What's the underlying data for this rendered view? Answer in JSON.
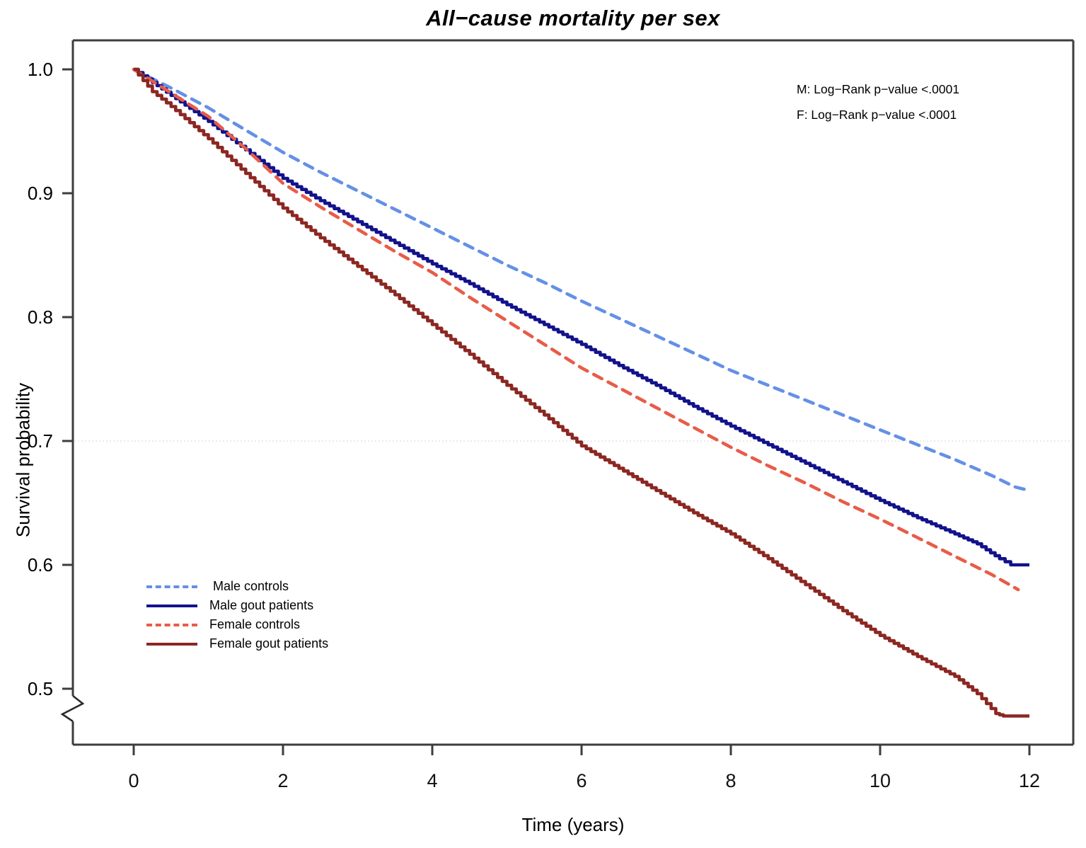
{
  "title": "All−cause mortality per sex",
  "annotations": {
    "male_pvalue": "M: Log−Rank p−value <.0001",
    "female_pvalue": "F: Log−Rank p−value <.0001"
  },
  "axes": {
    "x": {
      "label": "Time (years)",
      "ticks": [
        "0",
        "2",
        "4",
        "6",
        "8",
        "10",
        "12"
      ],
      "tick_values": [
        0,
        2,
        4,
        6,
        8,
        10,
        12
      ]
    },
    "y": {
      "label": "Survival probability",
      "ticks": [
        "1.0",
        "0.9",
        "0.8",
        "0.7",
        "0.6",
        "0.5"
      ],
      "tick_values": [
        1.0,
        0.9,
        0.8,
        0.7,
        0.6,
        0.5
      ],
      "axis_break": true
    }
  },
  "legend": {
    "items": [
      {
        "label": " Male controls",
        "color": "#6490e6",
        "dash": true
      },
      {
        "label": "Male gout patients",
        "color": "#12128c",
        "dash": false
      },
      {
        "label": "Female controls",
        "color": "#e85c48",
        "dash": true
      },
      {
        "label": "Female gout patients",
        "color": "#8c2722",
        "dash": false
      }
    ]
  },
  "chart_data": {
    "type": "line",
    "subtype": "kaplan-meier-survival",
    "title": "All−cause mortality per sex",
    "xlabel": "Time (years)",
    "ylabel": "Survival probability",
    "xlim": [
      0,
      12
    ],
    "ylim": [
      0.46,
      1.0
    ],
    "y_axis_break_below": 0.5,
    "reference_line_y": 0.7,
    "legend_position": "lower-left",
    "grid": false,
    "p_values": {
      "male": "<.0001",
      "female": "<.0001"
    },
    "series": [
      {
        "name": "Male controls",
        "color": "#6490e6",
        "style": "dashed",
        "points": [
          [
            0,
            1.0
          ],
          [
            0.5,
            0.985
          ],
          [
            1,
            0.969
          ],
          [
            1.5,
            0.951
          ],
          [
            2,
            0.933
          ],
          [
            2.5,
            0.917
          ],
          [
            3,
            0.902
          ],
          [
            3.5,
            0.887
          ],
          [
            4,
            0.872
          ],
          [
            4.5,
            0.857
          ],
          [
            5,
            0.842
          ],
          [
            5.5,
            0.828
          ],
          [
            6,
            0.813
          ],
          [
            6.5,
            0.799
          ],
          [
            7,
            0.785
          ],
          [
            7.5,
            0.771
          ],
          [
            8,
            0.757
          ],
          [
            8.5,
            0.745
          ],
          [
            9,
            0.733
          ],
          [
            9.5,
            0.721
          ],
          [
            10,
            0.709
          ],
          [
            10.5,
            0.697
          ],
          [
            11,
            0.685
          ],
          [
            11.5,
            0.672
          ],
          [
            11.8,
            0.663
          ],
          [
            12,
            0.66
          ]
        ]
      },
      {
        "name": "Male gout patients",
        "color": "#12128c",
        "style": "solid",
        "points": [
          [
            0,
            1.0
          ],
          [
            0.5,
            0.979
          ],
          [
            1,
            0.958
          ],
          [
            1.5,
            0.935
          ],
          [
            2,
            0.912
          ],
          [
            2.5,
            0.894
          ],
          [
            3,
            0.877
          ],
          [
            3.5,
            0.86
          ],
          [
            4,
            0.843
          ],
          [
            4.5,
            0.827
          ],
          [
            5,
            0.81
          ],
          [
            5.5,
            0.794
          ],
          [
            6,
            0.778
          ],
          [
            6.5,
            0.761
          ],
          [
            7,
            0.745
          ],
          [
            7.5,
            0.728
          ],
          [
            8,
            0.712
          ],
          [
            8.5,
            0.697
          ],
          [
            9,
            0.682
          ],
          [
            9.5,
            0.667
          ],
          [
            10,
            0.652
          ],
          [
            10.5,
            0.638
          ],
          [
            11,
            0.625
          ],
          [
            11.3,
            0.617
          ],
          [
            11.6,
            0.605
          ],
          [
            11.75,
            0.6
          ],
          [
            12,
            0.6
          ]
        ]
      },
      {
        "name": "Female controls",
        "color": "#e85c48",
        "style": "dashed",
        "points": [
          [
            0,
            1.0
          ],
          [
            0.5,
            0.981
          ],
          [
            1,
            0.962
          ],
          [
            1.5,
            0.936
          ],
          [
            2,
            0.908
          ],
          [
            2.5,
            0.889
          ],
          [
            3,
            0.871
          ],
          [
            3.5,
            0.853
          ],
          [
            4,
            0.836
          ],
          [
            4.5,
            0.816
          ],
          [
            5,
            0.797
          ],
          [
            5.5,
            0.778
          ],
          [
            6,
            0.759
          ],
          [
            6.5,
            0.743
          ],
          [
            7,
            0.727
          ],
          [
            7.5,
            0.711
          ],
          [
            8,
            0.695
          ],
          [
            8.5,
            0.68
          ],
          [
            9,
            0.666
          ],
          [
            9.5,
            0.651
          ],
          [
            10,
            0.637
          ],
          [
            10.5,
            0.622
          ],
          [
            11,
            0.607
          ],
          [
            11.5,
            0.592
          ],
          [
            11.85,
            0.58
          ]
        ]
      },
      {
        "name": "Female gout patients",
        "color": "#8c2722",
        "style": "solid",
        "points": [
          [
            0,
            1.0
          ],
          [
            0.25,
            0.982
          ],
          [
            0.5,
            0.97
          ],
          [
            1,
            0.944
          ],
          [
            1.5,
            0.916
          ],
          [
            2,
            0.888
          ],
          [
            2.5,
            0.864
          ],
          [
            3,
            0.841
          ],
          [
            3.5,
            0.818
          ],
          [
            4,
            0.794
          ],
          [
            4.5,
            0.77
          ],
          [
            5,
            0.745
          ],
          [
            5.5,
            0.721
          ],
          [
            6,
            0.696
          ],
          [
            6.5,
            0.678
          ],
          [
            7,
            0.66
          ],
          [
            7.5,
            0.642
          ],
          [
            8,
            0.625
          ],
          [
            8.5,
            0.605
          ],
          [
            9,
            0.584
          ],
          [
            9.5,
            0.563
          ],
          [
            10,
            0.543
          ],
          [
            10.5,
            0.526
          ],
          [
            11,
            0.51
          ],
          [
            11.3,
            0.496
          ],
          [
            11.55,
            0.48
          ],
          [
            11.65,
            0.478
          ],
          [
            12,
            0.478
          ]
        ]
      }
    ]
  }
}
